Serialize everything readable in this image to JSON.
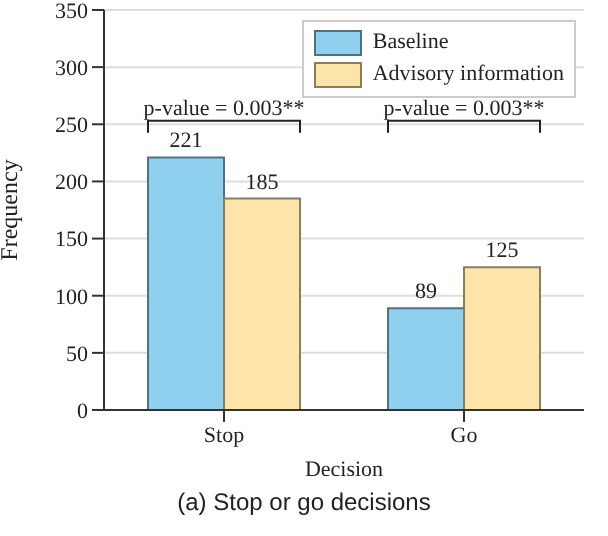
{
  "chart_data": {
    "type": "bar",
    "title": "(a) Stop or go decisions",
    "xlabel": "Decision",
    "ylabel": "Frequency",
    "categories": [
      "Stop",
      "Go"
    ],
    "series": [
      {
        "name": "Baseline",
        "color": "#8fd0ef",
        "values": [
          221,
          89
        ]
      },
      {
        "name": "Advisory information",
        "color": "#fde4a8",
        "values": [
          185,
          125
        ]
      }
    ],
    "ylim": [
      0,
      350
    ],
    "yticks": [
      0,
      50,
      100,
      150,
      200,
      250,
      300,
      350
    ],
    "grid": "y",
    "legend": "top right",
    "data_labels": true,
    "annotations": [
      "p-value = 0.003**",
      "p-value = 0.003**"
    ]
  }
}
